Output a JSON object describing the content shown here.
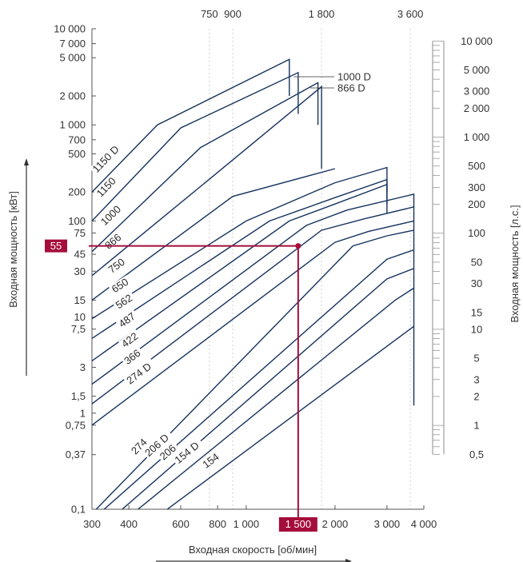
{
  "chart_data": {
    "type": "line",
    "title": "",
    "xlabel": "Входная скорость [об/мин]",
    "ylabel": "Входная мощность [кВт]",
    "y2label": "Входная мощность [л.с.]",
    "x_scale": "log",
    "y_scale": "log",
    "xlim": [
      300,
      4000
    ],
    "ylim": [
      0.1,
      10000
    ],
    "x_ticks_bottom": [
      "300",
      "400",
      "600",
      "800",
      "1 000",
      "2 000",
      "3 000",
      "4 000"
    ],
    "x_ticks_bottom_values": [
      300,
      400,
      600,
      800,
      1000,
      2000,
      3000,
      4000
    ],
    "x_ticks_top": [
      "750",
      "900",
      "1 800",
      "3 600"
    ],
    "x_ticks_top_values": [
      750,
      900,
      1800,
      3600
    ],
    "y_ticks_left": [
      "0,1",
      "0,37",
      "0,75",
      "1",
      "1,5",
      "3",
      "7,5",
      "10",
      "15",
      "30",
      "45",
      "75",
      "100",
      "200",
      "500",
      "700",
      "1 000",
      "2 000",
      "5 000",
      "7 000",
      "10 000"
    ],
    "y_ticks_left_values": [
      0.1,
      0.37,
      0.75,
      1,
      1.5,
      3,
      7.5,
      10,
      15,
      30,
      45,
      75,
      100,
      200,
      500,
      700,
      1000,
      2000,
      5000,
      7000,
      10000
    ],
    "y_ticks_right": [
      "0,5",
      "1",
      "2",
      "3",
      "5",
      "10",
      "15",
      "30",
      "50",
      "100",
      "200",
      "300",
      "500",
      "1 000",
      "2 000",
      "3 000",
      "5 000",
      "10 000"
    ],
    "y_ticks_right_values": [
      0.5,
      1,
      2,
      3,
      5,
      10,
      15,
      30,
      50,
      100,
      200,
      300,
      500,
      1000,
      2000,
      3000,
      5000,
      10000
    ],
    "series": [
      {
        "name": "1150 D",
        "x": [
          300,
          500,
          1400,
          1400
        ],
        "y": [
          200,
          1000,
          4800,
          2000
        ]
      },
      {
        "name": "1150",
        "x": [
          300,
          600,
          1500,
          1500
        ],
        "y": [
          100,
          930,
          3500,
          1300
        ]
      },
      {
        "name": "1000",
        "x": [
          300,
          700,
          1750,
          1750
        ],
        "y": [
          48,
          580,
          2750,
          1000
        ]
      },
      {
        "name": "866",
        "x": [
          300,
          800,
          1800,
          1800
        ],
        "y": [
          27,
          320,
          2500,
          350
        ]
      },
      {
        "name": "750",
        "x": [
          300,
          900,
          2000,
          2000
        ],
        "y": [
          15,
          180,
          350,
          350
        ]
      },
      {
        "name": "650",
        "x": [
          300,
          1000,
          2000,
          3000,
          3000
        ],
        "y": [
          9.6,
          100,
          250,
          360,
          200
        ]
      },
      {
        "name": "562",
        "x": [
          300,
          1200,
          2000,
          3000,
          3000
        ],
        "y": [
          6,
          100,
          175,
          270,
          150
        ]
      },
      {
        "name": "487",
        "x": [
          300,
          1400,
          2000,
          3000,
          3000
        ],
        "y": [
          3.5,
          100,
          150,
          240,
          120
        ]
      },
      {
        "name": "422",
        "x": [
          300,
          1600,
          2200,
          3700,
          3700
        ],
        "y": [
          2,
          90,
          130,
          190,
          1.2
        ]
      },
      {
        "name": "366",
        "x": [
          300,
          1800,
          2500,
          3700
        ],
        "y": [
          1.25,
          80,
          105,
          140
        ]
      },
      {
        "name": "274 D",
        "x": [
          300,
          2000,
          2600,
          3700
        ],
        "y": [
          0.75,
          60,
          78,
          100
        ]
      },
      {
        "name": "274",
        "x": [
          310,
          2300,
          3000,
          3700
        ],
        "y": [
          0.1,
          55,
          70,
          80
        ]
      },
      {
        "name": "206 D",
        "x": [
          330,
          3000,
          3700
        ],
        "y": [
          0.1,
          40,
          50
        ]
      },
      {
        "name": "206",
        "x": [
          380,
          3000,
          3700
        ],
        "y": [
          0.1,
          25,
          32
        ]
      },
      {
        "name": "154 D",
        "x": [
          430,
          3200,
          3700
        ],
        "y": [
          0.1,
          15,
          20
        ]
      },
      {
        "name": "154",
        "x": [
          540,
          3700
        ],
        "y": [
          0.1,
          8
        ]
      }
    ],
    "annotations": [
      {
        "text": "1000 D",
        "x": 1450
      },
      {
        "text": "866 D",
        "x": 1650
      }
    ],
    "highlight": {
      "x": 1500,
      "y": 55,
      "x_label": "1 500",
      "y_label": "55",
      "color": "#a50d3b"
    },
    "colors": {
      "line": "#15325e",
      "axis": "#555555",
      "grid": "#cfcfcf",
      "highlight": "#a50d3b"
    },
    "grid": true,
    "legend": "none"
  }
}
